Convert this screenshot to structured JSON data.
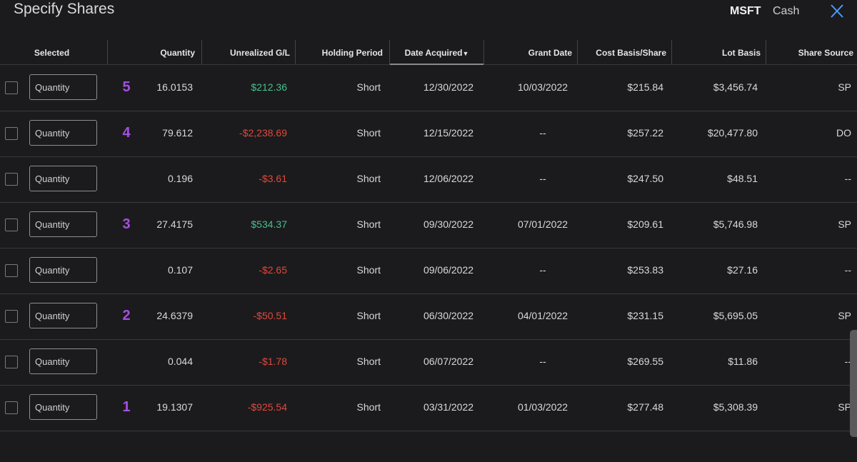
{
  "header": {
    "title": "Specify Shares",
    "symbol": "MSFT",
    "cash_label": "Cash"
  },
  "columns": {
    "selected": "Selected",
    "quantity": "Quantity",
    "unrealized": "Unrealized G/L",
    "holding": "Holding Period",
    "date_acquired": "Date Acquired",
    "grant_date": "Grant Date",
    "cost_basis": "Cost Basis/Share",
    "lot_basis": "Lot Basis",
    "share_source": "Share Source"
  },
  "input_placeholder": "Quantity",
  "rows": [
    {
      "annotation": "5",
      "quantity": "16.0153",
      "gl": "$212.36",
      "gl_sign": "pos",
      "holding": "Short",
      "acquired": "12/30/2022",
      "grant": "10/03/2022",
      "cost": "$215.84",
      "lot": "$3,456.74",
      "source": "SP"
    },
    {
      "annotation": "4",
      "quantity": "79.612",
      "gl": "-$2,238.69",
      "gl_sign": "neg",
      "holding": "Short",
      "acquired": "12/15/2022",
      "grant": "--",
      "cost": "$257.22",
      "lot": "$20,477.80",
      "source": "DO"
    },
    {
      "annotation": "",
      "quantity": "0.196",
      "gl": "-$3.61",
      "gl_sign": "neg",
      "holding": "Short",
      "acquired": "12/06/2022",
      "grant": "--",
      "cost": "$247.50",
      "lot": "$48.51",
      "source": "--"
    },
    {
      "annotation": "3",
      "quantity": "27.4175",
      "gl": "$534.37",
      "gl_sign": "pos",
      "holding": "Short",
      "acquired": "09/30/2022",
      "grant": "07/01/2022",
      "cost": "$209.61",
      "lot": "$5,746.98",
      "source": "SP"
    },
    {
      "annotation": "",
      "quantity": "0.107",
      "gl": "-$2.65",
      "gl_sign": "neg",
      "holding": "Short",
      "acquired": "09/06/2022",
      "grant": "--",
      "cost": "$253.83",
      "lot": "$27.16",
      "source": "--"
    },
    {
      "annotation": "2",
      "quantity": "24.6379",
      "gl": "-$50.51",
      "gl_sign": "neg",
      "holding": "Short",
      "acquired": "06/30/2022",
      "grant": "04/01/2022",
      "cost": "$231.15",
      "lot": "$5,695.05",
      "source": "SP"
    },
    {
      "annotation": "",
      "quantity": "0.044",
      "gl": "-$1.78",
      "gl_sign": "neg",
      "holding": "Short",
      "acquired": "06/07/2022",
      "grant": "--",
      "cost": "$269.55",
      "lot": "$11.86",
      "source": "--"
    },
    {
      "annotation": "1",
      "quantity": "19.1307",
      "gl": "-$925.54",
      "gl_sign": "neg",
      "holding": "Short",
      "acquired": "03/31/2022",
      "grant": "01/03/2022",
      "cost": "$277.48",
      "lot": "$5,308.39",
      "source": "SP"
    }
  ],
  "colors": {
    "positive": "#49c08a",
    "negative": "#e0483d",
    "annotation": "#a64fe0",
    "accent": "#4a9cff"
  },
  "icons": {
    "close": "close-icon",
    "sort": "caret-down-icon"
  }
}
